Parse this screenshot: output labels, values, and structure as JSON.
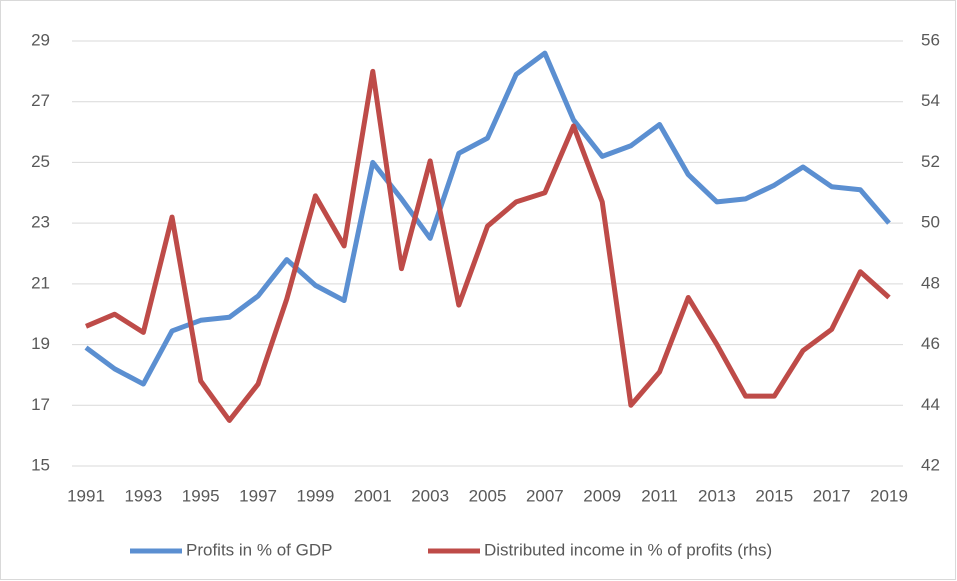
{
  "chart_data": {
    "type": "line",
    "categories": [
      "1991",
      null,
      "1993",
      null,
      "1995",
      null,
      "1997",
      null,
      "1999",
      null,
      "2001",
      null,
      "2003",
      null,
      "2005",
      null,
      "2007",
      null,
      "2009",
      null,
      "2011",
      null,
      "2013",
      null,
      "2015",
      null,
      "2017",
      null,
      "2019"
    ],
    "series": [
      {
        "name": "Profits in % of GDP",
        "color": "#5b8fd1",
        "values": [
          18.9,
          18.2,
          17.7,
          19.45,
          19.8,
          19.9,
          20.6,
          21.8,
          20.95,
          20.45,
          25.0,
          23.8,
          22.5,
          25.3,
          25.8,
          27.9,
          28.6,
          26.4,
          25.2,
          25.55,
          26.25,
          24.6,
          23.7,
          23.8,
          24.25,
          24.85,
          24.2,
          24.1,
          23.0
        ]
      },
      {
        "name": "Distributed income in % of profits (rhs)",
        "color": "#be4b48",
        "axis": "y2",
        "values": [
          46.6,
          47.0,
          46.4,
          50.2,
          44.8,
          43.5,
          44.7,
          47.5,
          50.9,
          49.25,
          55.0,
          48.5,
          52.05,
          47.3,
          49.9,
          50.7,
          51.0,
          53.2,
          50.7,
          44.0,
          45.1,
          47.55,
          46.0,
          44.3,
          44.3,
          45.8,
          46.5,
          48.4,
          47.55
        ]
      }
    ],
    "ylim": [
      15,
      29
    ],
    "yticks": [
      15,
      17,
      19,
      21,
      23,
      25,
      27,
      29
    ],
    "y2lim": [
      42,
      56
    ],
    "y2ticks": [
      42,
      44,
      46,
      48,
      50,
      52,
      54,
      56
    ],
    "grid": true,
    "legend": "bottom"
  }
}
